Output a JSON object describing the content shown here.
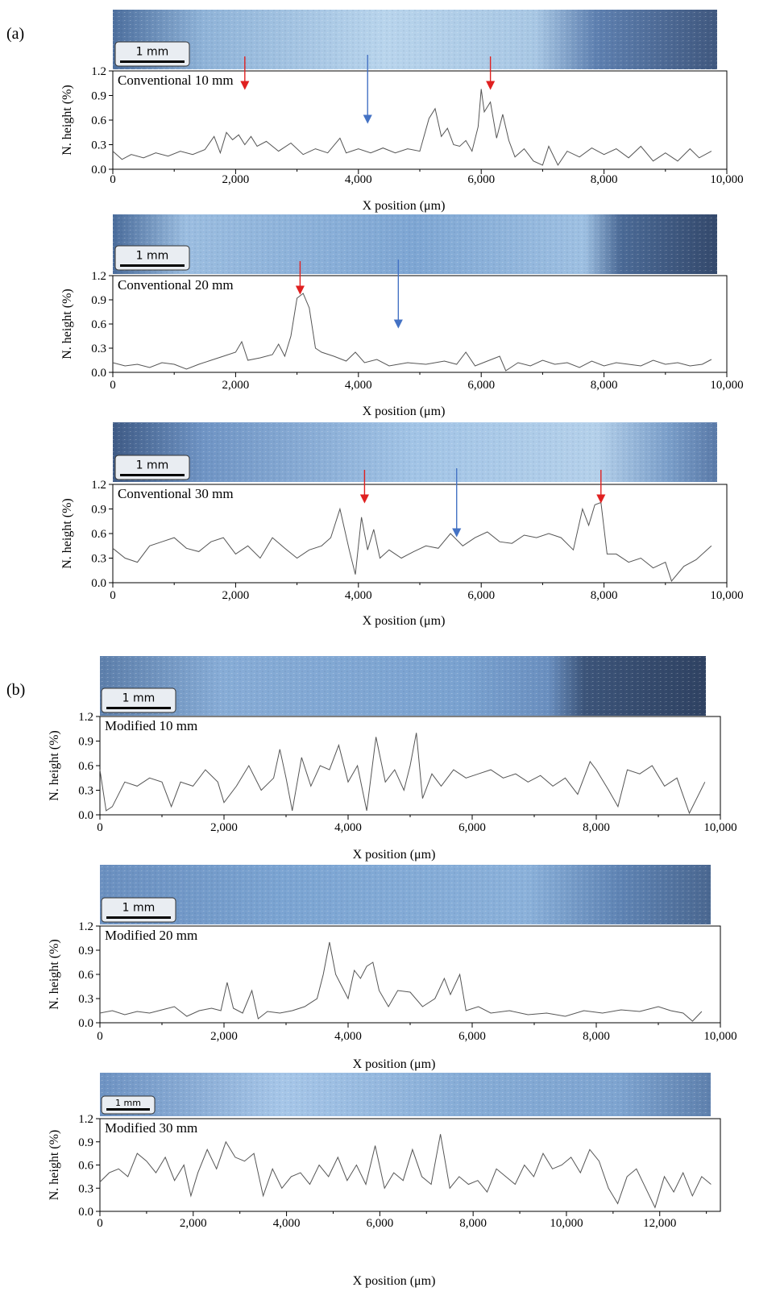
{
  "panel_labels": [
    "(a)",
    "(b)"
  ],
  "scale_bar_label": "1 mm",
  "chart_data": [
    {
      "type": "line",
      "panel": "(a)",
      "title": "Conventional 10 mm",
      "xlabel": "X position (μm)",
      "ylabel": "N. height (%)",
      "xlim": [
        0,
        10000
      ],
      "ylim": [
        0,
        1.2
      ],
      "xticks": [
        "0",
        "2,000",
        "4,000",
        "6,000",
        "8,000",
        "10,000"
      ],
      "yticks": [
        "0.0",
        "0.3",
        "0.6",
        "0.9",
        "1.2"
      ],
      "x": [
        0,
        150,
        300,
        500,
        700,
        900,
        1100,
        1300,
        1500,
        1650,
        1750,
        1850,
        1950,
        2050,
        2150,
        2250,
        2350,
        2500,
        2700,
        2900,
        3100,
        3300,
        3500,
        3700,
        3800,
        4000,
        4200,
        4400,
        4600,
        4800,
        5000,
        5150,
        5250,
        5350,
        5450,
        5550,
        5650,
        5750,
        5850,
        5950,
        6000,
        6050,
        6150,
        6250,
        6350,
        6450,
        6550,
        6700,
        6850,
        7000,
        7100,
        7250,
        7400,
        7600,
        7800,
        8000,
        8200,
        8400,
        8600,
        8800,
        9000,
        9200,
        9400,
        9550,
        9750
      ],
      "y": [
        0.22,
        0.12,
        0.18,
        0.14,
        0.2,
        0.16,
        0.22,
        0.18,
        0.24,
        0.4,
        0.2,
        0.45,
        0.36,
        0.42,
        0.3,
        0.4,
        0.28,
        0.34,
        0.22,
        0.32,
        0.18,
        0.25,
        0.2,
        0.38,
        0.2,
        0.25,
        0.2,
        0.26,
        0.2,
        0.25,
        0.22,
        0.62,
        0.74,
        0.4,
        0.5,
        0.3,
        0.28,
        0.35,
        0.22,
        0.52,
        0.98,
        0.7,
        0.82,
        0.38,
        0.67,
        0.35,
        0.15,
        0.25,
        0.1,
        0.05,
        0.28,
        0.05,
        0.22,
        0.15,
        0.26,
        0.18,
        0.25,
        0.14,
        0.28,
        0.1,
        0.2,
        0.1,
        0.25,
        0.14,
        0.22
      ],
      "annotations": [
        {
          "type": "arrow",
          "color": "#e02020",
          "x": 2150
        },
        {
          "type": "arrow",
          "color": "#4472c4",
          "x": 4150
        },
        {
          "type": "arrow",
          "color": "#e02020",
          "x": 6150
        }
      ]
    },
    {
      "type": "line",
      "panel": "(a)",
      "title": "Conventional 20 mm",
      "xlabel": "X position (μm)",
      "ylabel": "N. height (%)",
      "xlim": [
        0,
        10000
      ],
      "ylim": [
        0,
        1.2
      ],
      "xticks": [
        "0",
        "2,000",
        "4,000",
        "6,000",
        "8,000",
        "10,000"
      ],
      "yticks": [
        "0.0",
        "0.3",
        "0.6",
        "0.9",
        "1.2"
      ],
      "x": [
        0,
        200,
        400,
        600,
        800,
        1000,
        1200,
        1400,
        1600,
        1800,
        2000,
        2100,
        2200,
        2400,
        2600,
        2700,
        2800,
        2900,
        3000,
        3100,
        3200,
        3300,
        3400,
        3600,
        3800,
        3950,
        4100,
        4300,
        4500,
        4800,
        5100,
        5400,
        5600,
        5750,
        5900,
        6100,
        6300,
        6400,
        6600,
        6800,
        7000,
        7200,
        7400,
        7600,
        7800,
        8000,
        8200,
        8400,
        8600,
        8800,
        9000,
        9200,
        9400,
        9600,
        9750
      ],
      "y": [
        0.12,
        0.08,
        0.1,
        0.06,
        0.12,
        0.1,
        0.04,
        0.1,
        0.15,
        0.2,
        0.25,
        0.38,
        0.15,
        0.18,
        0.22,
        0.35,
        0.2,
        0.45,
        0.92,
        0.98,
        0.8,
        0.3,
        0.25,
        0.2,
        0.14,
        0.25,
        0.12,
        0.16,
        0.08,
        0.12,
        0.1,
        0.14,
        0.1,
        0.25,
        0.08,
        0.14,
        0.2,
        0.02,
        0.12,
        0.08,
        0.15,
        0.1,
        0.12,
        0.06,
        0.14,
        0.08,
        0.12,
        0.1,
        0.08,
        0.15,
        0.1,
        0.12,
        0.08,
        0.1,
        0.16
      ],
      "annotations": [
        {
          "type": "arrow",
          "color": "#e02020",
          "x": 3050
        },
        {
          "type": "arrow",
          "color": "#4472c4",
          "x": 4650
        }
      ]
    },
    {
      "type": "line",
      "panel": "(a)",
      "title": "Conventional 30 mm",
      "xlabel": "X position (μm)",
      "ylabel": "N. height (%)",
      "xlim": [
        0,
        10000
      ],
      "ylim": [
        0,
        1.2
      ],
      "xticks": [
        "0",
        "2,000",
        "4,000",
        "6,000",
        "8,000",
        "10,000"
      ],
      "yticks": [
        "0.0",
        "0.3",
        "0.6",
        "0.9",
        "1.2"
      ],
      "x": [
        0,
        200,
        400,
        600,
        800,
        1000,
        1200,
        1400,
        1600,
        1800,
        2000,
        2200,
        2400,
        2600,
        2800,
        3000,
        3200,
        3400,
        3550,
        3700,
        3850,
        3950,
        4050,
        4150,
        4250,
        4350,
        4500,
        4700,
        4900,
        5100,
        5300,
        5500,
        5700,
        5900,
        6100,
        6300,
        6500,
        6700,
        6900,
        7100,
        7300,
        7500,
        7650,
        7750,
        7850,
        7950,
        8050,
        8200,
        8400,
        8600,
        8800,
        9000,
        9100,
        9300,
        9500,
        9750
      ],
      "y": [
        0.42,
        0.3,
        0.25,
        0.45,
        0.5,
        0.55,
        0.42,
        0.38,
        0.5,
        0.55,
        0.35,
        0.45,
        0.3,
        0.55,
        0.42,
        0.3,
        0.4,
        0.45,
        0.55,
        0.9,
        0.4,
        0.1,
        0.8,
        0.4,
        0.65,
        0.3,
        0.4,
        0.3,
        0.38,
        0.45,
        0.42,
        0.6,
        0.45,
        0.55,
        0.62,
        0.5,
        0.48,
        0.58,
        0.55,
        0.6,
        0.55,
        0.4,
        0.9,
        0.7,
        0.95,
        0.98,
        0.35,
        0.35,
        0.25,
        0.3,
        0.18,
        0.25,
        0.02,
        0.2,
        0.28,
        0.45
      ],
      "annotations": [
        {
          "type": "arrow",
          "color": "#e02020",
          "x": 4100
        },
        {
          "type": "arrow",
          "color": "#4472c4",
          "x": 5600
        },
        {
          "type": "arrow",
          "color": "#e02020",
          "x": 7950
        }
      ]
    },
    {
      "type": "line",
      "panel": "(b)",
      "title": "Modified 10 mm",
      "xlabel": "X position (μm)",
      "ylabel": "N. height (%)",
      "xlim": [
        0,
        10000
      ],
      "ylim": [
        0,
        1.2
      ],
      "xticks": [
        "0",
        "2,000",
        "4,000",
        "6,000",
        "8,000",
        "10,000"
      ],
      "yticks": [
        "0.0",
        "0.3",
        "0.6",
        "0.9",
        "1.2"
      ],
      "x": [
        0,
        100,
        200,
        400,
        600,
        800,
        1000,
        1150,
        1300,
        1500,
        1700,
        1900,
        2000,
        2200,
        2400,
        2600,
        2800,
        2900,
        3000,
        3100,
        3250,
        3400,
        3550,
        3700,
        3850,
        4000,
        4150,
        4300,
        4450,
        4600,
        4750,
        4900,
        5000,
        5100,
        5200,
        5350,
        5500,
        5700,
        5900,
        6100,
        6300,
        6500,
        6700,
        6900,
        7100,
        7300,
        7500,
        7700,
        7900,
        8000,
        8200,
        8350,
        8500,
        8700,
        8900,
        9100,
        9300,
        9500,
        9750
      ],
      "y": [
        0.55,
        0.05,
        0.1,
        0.4,
        0.35,
        0.45,
        0.4,
        0.1,
        0.4,
        0.35,
        0.55,
        0.4,
        0.15,
        0.35,
        0.6,
        0.3,
        0.45,
        0.8,
        0.45,
        0.05,
        0.7,
        0.35,
        0.6,
        0.55,
        0.85,
        0.4,
        0.6,
        0.05,
        0.95,
        0.4,
        0.55,
        0.3,
        0.6,
        1.0,
        0.2,
        0.5,
        0.35,
        0.55,
        0.45,
        0.5,
        0.55,
        0.45,
        0.5,
        0.4,
        0.48,
        0.35,
        0.45,
        0.25,
        0.65,
        0.55,
        0.3,
        0.1,
        0.55,
        0.5,
        0.6,
        0.35,
        0.45,
        0.02,
        0.4
      ],
      "annotations": []
    },
    {
      "type": "line",
      "panel": "(b)",
      "title": "Modified 20 mm",
      "xlabel": "X position (μm)",
      "ylabel": "N. height (%)",
      "xlim": [
        0,
        10000
      ],
      "ylim": [
        0,
        1.2
      ],
      "xticks": [
        "0",
        "2,000",
        "4,000",
        "6,000",
        "8,000",
        "10,000"
      ],
      "yticks": [
        "0.0",
        "0.3",
        "0.6",
        "0.9",
        "1.2"
      ],
      "x": [
        0,
        200,
        400,
        600,
        800,
        1000,
        1200,
        1400,
        1600,
        1800,
        1950,
        2050,
        2150,
        2300,
        2450,
        2550,
        2700,
        2900,
        3100,
        3300,
        3500,
        3600,
        3700,
        3800,
        3900,
        4000,
        4100,
        4200,
        4300,
        4400,
        4500,
        4650,
        4800,
        5000,
        5200,
        5400,
        5550,
        5650,
        5800,
        5900,
        6100,
        6300,
        6600,
        6900,
        7200,
        7500,
        7800,
        8100,
        8400,
        8700,
        9000,
        9200,
        9400,
        9550,
        9700
      ],
      "y": [
        0.12,
        0.15,
        0.1,
        0.14,
        0.12,
        0.16,
        0.2,
        0.08,
        0.15,
        0.18,
        0.15,
        0.5,
        0.18,
        0.12,
        0.4,
        0.05,
        0.14,
        0.12,
        0.15,
        0.2,
        0.3,
        0.6,
        1.0,
        0.6,
        0.45,
        0.3,
        0.65,
        0.55,
        0.7,
        0.75,
        0.4,
        0.2,
        0.4,
        0.38,
        0.2,
        0.3,
        0.55,
        0.35,
        0.6,
        0.15,
        0.2,
        0.12,
        0.15,
        0.1,
        0.12,
        0.08,
        0.15,
        0.12,
        0.16,
        0.14,
        0.2,
        0.15,
        0.12,
        0.02,
        0.14
      ],
      "annotations": []
    },
    {
      "type": "line",
      "panel": "(b)",
      "title": "Modified 30 mm",
      "xlabel": "X position (μm)",
      "ylabel": "N. height (%)",
      "xlim": [
        0,
        13300
      ],
      "ylim": [
        0,
        1.2
      ],
      "xticks": [
        "0",
        "2,000",
        "4,000",
        "6,000",
        "8,000",
        "10,000",
        "12,000"
      ],
      "yticks": [
        "0.0",
        "0.3",
        "0.6",
        "0.9",
        "1.2"
      ],
      "x": [
        0,
        200,
        400,
        600,
        800,
        1000,
        1200,
        1400,
        1600,
        1800,
        1950,
        2100,
        2300,
        2500,
        2700,
        2900,
        3100,
        3300,
        3500,
        3700,
        3900,
        4100,
        4300,
        4500,
        4700,
        4900,
        5100,
        5300,
        5500,
        5700,
        5900,
        6100,
        6300,
        6500,
        6700,
        6900,
        7100,
        7300,
        7500,
        7700,
        7900,
        8100,
        8300,
        8500,
        8700,
        8900,
        9100,
        9300,
        9500,
        9700,
        9900,
        10100,
        10300,
        10500,
        10700,
        10900,
        11100,
        11300,
        11500,
        11700,
        11900,
        12100,
        12300,
        12500,
        12700,
        12900,
        13100
      ],
      "y": [
        0.38,
        0.5,
        0.55,
        0.45,
        0.75,
        0.65,
        0.5,
        0.7,
        0.4,
        0.6,
        0.2,
        0.5,
        0.8,
        0.55,
        0.9,
        0.7,
        0.65,
        0.75,
        0.2,
        0.55,
        0.3,
        0.45,
        0.5,
        0.35,
        0.6,
        0.45,
        0.7,
        0.4,
        0.6,
        0.35,
        0.85,
        0.3,
        0.5,
        0.4,
        0.8,
        0.45,
        0.35,
        1.0,
        0.3,
        0.45,
        0.35,
        0.4,
        0.25,
        0.55,
        0.45,
        0.35,
        0.6,
        0.45,
        0.75,
        0.55,
        0.6,
        0.7,
        0.5,
        0.8,
        0.65,
        0.3,
        0.1,
        0.45,
        0.55,
        0.3,
        0.05,
        0.45,
        0.25,
        0.5,
        0.2,
        0.45,
        0.35
      ]
    }
  ]
}
